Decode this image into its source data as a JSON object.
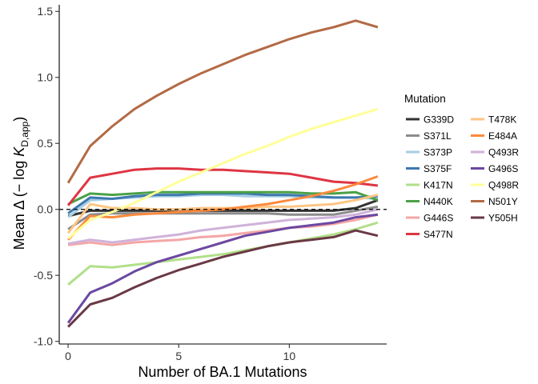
{
  "chart_data": {
    "type": "line",
    "xlabel": "Number of BA.1 Mutations",
    "ylabel": {
      "prefix": "Mean Δ (− log ",
      "var": "K",
      "sub": "D,app",
      "suffix": ")"
    },
    "xlim": [
      -0.4,
      14.4
    ],
    "ylim": [
      -1.02,
      1.55
    ],
    "xticks": [
      0,
      5,
      10
    ],
    "yticks": [
      -1.0,
      -0.5,
      0.0,
      0.5,
      1.0,
      1.5
    ],
    "ytick_labels": [
      "-1.0",
      "-0.5",
      "0.0",
      "0.5",
      "1.0",
      "1.5"
    ],
    "xtick_labels": [
      "0",
      "5",
      "10"
    ],
    "reference_line": {
      "y": 0,
      "style": "dashed",
      "color": "#000000"
    },
    "grid": false,
    "legend": {
      "title": "Mutation",
      "placement": "right",
      "columns": 2
    },
    "x": [
      0,
      1,
      2,
      3,
      4,
      5,
      6,
      7,
      8,
      9,
      10,
      11,
      12,
      13,
      14
    ],
    "series": [
      {
        "name": "G339D",
        "color": "#333333",
        "values": [
          -0.05,
          -0.01,
          -0.01,
          -0.01,
          -0.01,
          -0.01,
          -0.01,
          -0.01,
          -0.01,
          -0.01,
          -0.01,
          -0.01,
          -0.01,
          0.01,
          0.07
        ]
      },
      {
        "name": "S371L",
        "color": "#8c8c8c",
        "values": [
          -0.15,
          -0.04,
          -0.03,
          -0.03,
          -0.03,
          -0.03,
          -0.03,
          -0.03,
          -0.03,
          -0.03,
          -0.04,
          -0.04,
          -0.04,
          -0.01,
          0.02
        ]
      },
      {
        "name": "S373P",
        "color": "#a6cee3",
        "values": [
          -0.06,
          0.07,
          0.08,
          0.09,
          0.1,
          0.1,
          0.11,
          0.11,
          0.1,
          0.1,
          0.1,
          0.09,
          0.09,
          0.09,
          0.08
        ]
      },
      {
        "name": "S375F",
        "color": "#3d78b0",
        "values": [
          -0.03,
          0.09,
          0.08,
          0.1,
          0.11,
          0.11,
          0.12,
          0.12,
          0.12,
          0.11,
          0.11,
          0.1,
          0.09,
          0.09,
          0.1
        ]
      },
      {
        "name": "K417N",
        "color": "#b2df8a",
        "values": [
          -0.57,
          -0.43,
          -0.44,
          -0.42,
          -0.4,
          -0.38,
          -0.36,
          -0.34,
          -0.31,
          -0.28,
          -0.25,
          -0.22,
          -0.19,
          -0.15,
          -0.1
        ]
      },
      {
        "name": "N440K",
        "color": "#4aa146",
        "values": [
          0.04,
          0.12,
          0.11,
          0.12,
          0.13,
          0.13,
          0.13,
          0.13,
          0.13,
          0.13,
          0.13,
          0.12,
          0.12,
          0.13,
          0.07
        ]
      },
      {
        "name": "G446S",
        "color": "#f4a6a6",
        "values": [
          -0.27,
          -0.25,
          -0.27,
          -0.25,
          -0.24,
          -0.23,
          -0.21,
          -0.2,
          -0.18,
          -0.16,
          -0.14,
          -0.13,
          -0.11,
          -0.08,
          -0.04
        ]
      },
      {
        "name": "S477N",
        "color": "#de3543",
        "values": [
          0.03,
          0.24,
          0.27,
          0.3,
          0.31,
          0.31,
          0.3,
          0.3,
          0.29,
          0.28,
          0.27,
          0.24,
          0.21,
          0.2,
          0.18
        ]
      },
      {
        "name": "T478K",
        "color": "#fdc684",
        "values": [
          -0.18,
          0.04,
          0.01,
          0.01,
          0.0,
          0.0,
          0.01,
          0.01,
          0.01,
          0.02,
          0.02,
          0.03,
          0.04,
          0.07,
          0.11
        ]
      },
      {
        "name": "E484A",
        "color": "#fb8a3d",
        "values": [
          -0.23,
          -0.05,
          -0.06,
          -0.04,
          -0.03,
          -0.02,
          -0.01,
          0.0,
          0.02,
          0.04,
          0.07,
          0.1,
          0.14,
          0.19,
          0.25
        ]
      },
      {
        "name": "Q493R",
        "color": "#cfb2da",
        "values": [
          -0.26,
          -0.23,
          -0.25,
          -0.23,
          -0.21,
          -0.19,
          -0.16,
          -0.14,
          -0.12,
          -0.1,
          -0.08,
          -0.07,
          -0.06,
          -0.04,
          0.0
        ]
      },
      {
        "name": "G496S",
        "color": "#6b48a1",
        "values": [
          -0.86,
          -0.63,
          -0.56,
          -0.47,
          -0.4,
          -0.35,
          -0.3,
          -0.25,
          -0.2,
          -0.17,
          -0.14,
          -0.12,
          -0.1,
          -0.06,
          -0.04
        ]
      },
      {
        "name": "Q498R",
        "color": "#ffff99",
        "values": [
          -0.22,
          -0.08,
          -0.02,
          0.05,
          0.13,
          0.21,
          0.28,
          0.35,
          0.42,
          0.48,
          0.55,
          0.61,
          0.66,
          0.71,
          0.76
        ]
      },
      {
        "name": "N501Y",
        "color": "#b36a45",
        "values": [
          0.2,
          0.48,
          0.63,
          0.76,
          0.86,
          0.95,
          1.03,
          1.1,
          1.17,
          1.23,
          1.29,
          1.34,
          1.38,
          1.43,
          1.38
        ]
      },
      {
        "name": "Y505H",
        "color": "#6a3945",
        "values": [
          -0.89,
          -0.72,
          -0.67,
          -0.59,
          -0.52,
          -0.46,
          -0.41,
          -0.36,
          -0.32,
          -0.28,
          -0.25,
          -0.23,
          -0.21,
          -0.16,
          -0.2
        ]
      }
    ]
  }
}
